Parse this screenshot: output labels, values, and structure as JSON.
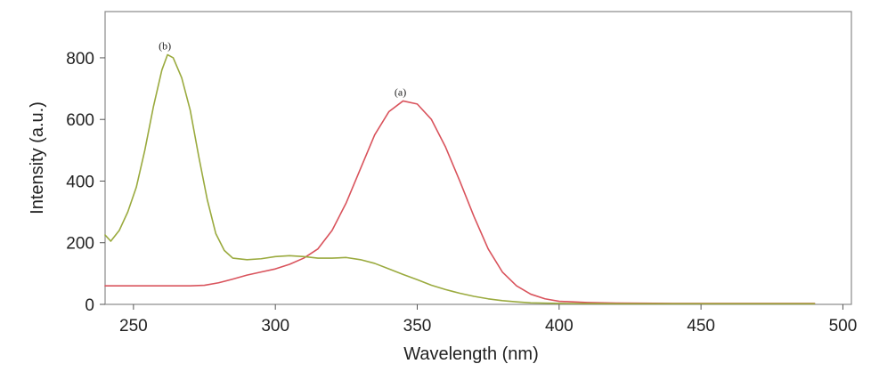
{
  "chart_data": {
    "type": "line",
    "title": "",
    "xlabel": "Wavelength (nm)",
    "ylabel": "Intensity (a.u.)",
    "xlim": [
      240,
      503
    ],
    "ylim": [
      0,
      950
    ],
    "x_ticks": [
      250,
      300,
      350,
      400,
      450,
      500
    ],
    "y_ticks": [
      0,
      200,
      400,
      600,
      800
    ],
    "grid": false,
    "series": [
      {
        "label": "(a)",
        "color": "#d9535c",
        "points": [
          [
            240,
            60
          ],
          [
            250,
            60
          ],
          [
            260,
            60
          ],
          [
            270,
            60
          ],
          [
            275,
            62
          ],
          [
            280,
            70
          ],
          [
            285,
            82
          ],
          [
            290,
            95
          ],
          [
            295,
            105
          ],
          [
            300,
            115
          ],
          [
            305,
            130
          ],
          [
            310,
            150
          ],
          [
            315,
            180
          ],
          [
            320,
            240
          ],
          [
            325,
            330
          ],
          [
            330,
            440
          ],
          [
            335,
            550
          ],
          [
            340,
            625
          ],
          [
            345,
            660
          ],
          [
            350,
            650
          ],
          [
            355,
            600
          ],
          [
            360,
            510
          ],
          [
            365,
            400
          ],
          [
            370,
            285
          ],
          [
            375,
            180
          ],
          [
            380,
            105
          ],
          [
            385,
            60
          ],
          [
            390,
            33
          ],
          [
            395,
            18
          ],
          [
            400,
            10
          ],
          [
            410,
            6
          ],
          [
            420,
            4
          ],
          [
            440,
            3
          ],
          [
            460,
            3
          ],
          [
            480,
            3
          ],
          [
            490,
            3
          ]
        ]
      },
      {
        "label": "(b)",
        "color": "#9aaa3e",
        "points": [
          [
            240,
            225
          ],
          [
            242,
            205
          ],
          [
            245,
            240
          ],
          [
            248,
            300
          ],
          [
            251,
            380
          ],
          [
            254,
            500
          ],
          [
            257,
            640
          ],
          [
            260,
            760
          ],
          [
            262,
            810
          ],
          [
            264,
            800
          ],
          [
            267,
            735
          ],
          [
            270,
            630
          ],
          [
            273,
            480
          ],
          [
            276,
            340
          ],
          [
            279,
            230
          ],
          [
            282,
            175
          ],
          [
            285,
            150
          ],
          [
            290,
            145
          ],
          [
            295,
            148
          ],
          [
            300,
            155
          ],
          [
            305,
            158
          ],
          [
            310,
            155
          ],
          [
            315,
            150
          ],
          [
            320,
            150
          ],
          [
            325,
            152
          ],
          [
            330,
            145
          ],
          [
            335,
            133
          ],
          [
            340,
            115
          ],
          [
            345,
            97
          ],
          [
            350,
            80
          ],
          [
            355,
            62
          ],
          [
            360,
            48
          ],
          [
            365,
            36
          ],
          [
            370,
            26
          ],
          [
            375,
            18
          ],
          [
            380,
            12
          ],
          [
            385,
            8
          ],
          [
            390,
            5
          ],
          [
            400,
            3
          ],
          [
            420,
            2
          ],
          [
            450,
            2
          ],
          [
            490,
            2
          ]
        ]
      }
    ]
  }
}
